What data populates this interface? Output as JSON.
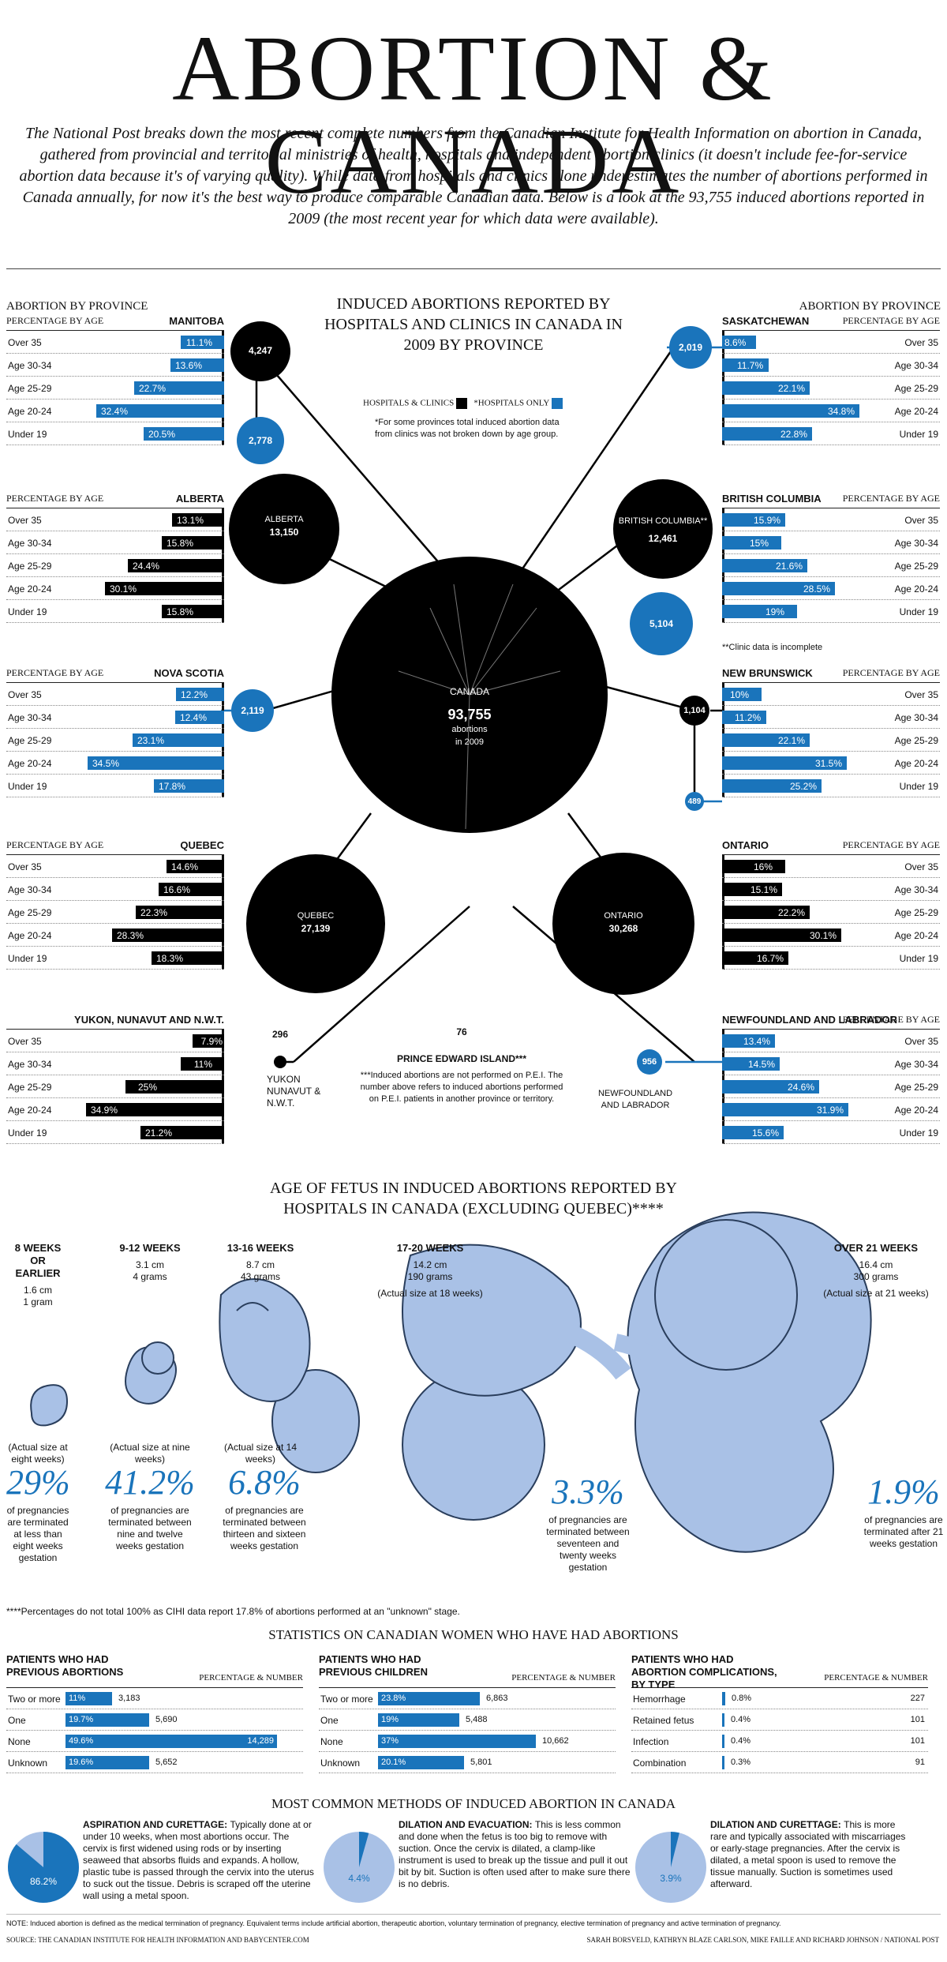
{
  "title": "ABORTION & CANADA",
  "intro": "The National Post breaks down the most recent complete numbers from the Canadian Institute for Health Information on abortion in Canada, gathered from provincial and territorial ministries of health, hospitals and independent abortion clinics (it doesn't include fee-for-service abortion data because it's of varying quality). While data from hospitals and clinics alone underestimates the number of abortions performed in Canada annually, for now it's the best way to produce comparable Canadian data. Below is a look at the 93,755 induced abortions reported in 2009 (the most recent year for which data were available).",
  "colors": {
    "black": "#000000",
    "blue": "#1a74bb",
    "light_blue": "#a9c1e6"
  },
  "center": {
    "title": "INDUCED ABORTIONS REPORTED BY HOSPITALS AND CLINICS IN CANADA IN 2009 BY PROVINCE",
    "legend_black": "HOSPITALS & CLINICS",
    "legend_blue": "*HOSPITALS ONLY",
    "note": "*For some provinces total induced abortion data from clinics was not broken down by age group.",
    "canada_name": "CANADA",
    "canada_total": "93,755",
    "canada_unit": "abortions",
    "canada_year": "in 2009",
    "abp_left": "ABORTION BY PROVINCE",
    "abp_right": "ABORTION BY PROVINCE"
  },
  "labels": {
    "pba": "PERCENTAGE BY AGE"
  },
  "age_groups": [
    "Over 35",
    "Age 30-34",
    "Age 25-29",
    "Age 20-24",
    "Under 19"
  ],
  "provinces": [
    {
      "name": "MANITOBA",
      "color": "blue",
      "values": [
        11.1,
        13.6,
        22.7,
        32.4,
        20.5
      ],
      "pct": [
        "11.1%",
        "13.6%",
        "22.7%",
        "32.4%",
        "20.5%"
      ]
    },
    {
      "name": "ALBERTA",
      "color": "black",
      "values": [
        13.1,
        15.8,
        24.4,
        30.1,
        15.8
      ],
      "pct": [
        "13.1%",
        "15.8%",
        "24.4%",
        "30.1%",
        "15.8%"
      ]
    },
    {
      "name": "NOVA SCOTIA",
      "color": "blue",
      "values": [
        12.2,
        12.4,
        23.1,
        34.5,
        17.8
      ],
      "pct": [
        "12.2%",
        "12.4%",
        "23.1%",
        "34.5%",
        "17.8%"
      ]
    },
    {
      "name": "QUEBEC",
      "color": "black",
      "values": [
        14.6,
        16.6,
        22.3,
        28.3,
        18.3
      ],
      "pct": [
        "14.6%",
        "16.6%",
        "22.3%",
        "28.3%",
        "18.3%"
      ]
    },
    {
      "name": "YUKON, NUNAVUT AND N.W.T.",
      "color": "black",
      "values": [
        7.9,
        11,
        25,
        34.9,
        21.2
      ],
      "pct": [
        "7.9%",
        "11%",
        "25%",
        "34.9%",
        "21.2%"
      ]
    },
    {
      "name": "SASKATCHEWAN",
      "color": "blue",
      "values": [
        8.6,
        11.7,
        22.1,
        34.8,
        22.8
      ],
      "pct": [
        "8.6%",
        "11.7%",
        "22.1%",
        "34.8%",
        "22.8%"
      ]
    },
    {
      "name": "BRITISH COLUMBIA",
      "color": "blue",
      "values": [
        15.9,
        15,
        21.6,
        28.5,
        19
      ],
      "pct": [
        "15.9%",
        "15%",
        "21.6%",
        "28.5%",
        "19%"
      ]
    },
    {
      "name": "NEW BRUNSWICK",
      "color": "blue",
      "values": [
        10,
        11.2,
        22.1,
        31.5,
        25.2
      ],
      "pct": [
        "10%",
        "11.2%",
        "22.1%",
        "31.5%",
        "25.2%"
      ]
    },
    {
      "name": "ONTARIO",
      "color": "black",
      "values": [
        16,
        15.1,
        22.2,
        30.1,
        16.7
      ],
      "pct": [
        "16%",
        "15.1%",
        "22.2%",
        "30.1%",
        "16.7%"
      ]
    },
    {
      "name": "NEWFOUNDLAND AND LABRADOR",
      "color": "blue",
      "values": [
        13.4,
        14.5,
        24.6,
        31.9,
        15.6
      ],
      "pct": [
        "13.4%",
        "14.5%",
        "24.6%",
        "31.9%",
        "15.6%"
      ]
    }
  ],
  "circles": {
    "manitoba_total": "4,247",
    "manitoba_hosp": "2,778",
    "alberta_name": "ALBERTA",
    "alberta_total": "13,150",
    "ns_hosp": "2,119",
    "quebec_name": "QUEBEC",
    "quebec_total": "27,139",
    "yukon_total": "296",
    "yukon_name": "YUKON NUNAVUT & N.W.T.",
    "sask_hosp": "2,019",
    "bc_name": "BRITISH COLUMBIA**",
    "bc_total": "12,461",
    "bc_hosp": "5,104",
    "nb_total": "1,104",
    "nb_hosp": "489",
    "ontario_name": "ONTARIO",
    "ontario_total": "30,268",
    "nfl_hosp": "956",
    "nfl_name": "NEWFOUNDLAND AND LABRADOR",
    "pei_total": "76",
    "pei_name": "PRINCE EDWARD ISLAND***",
    "pei_note": "***Induced abortions are not performed on P.E.I. The number above refers to induced abortions performed on P.E.I. patients in another province or territory.",
    "bc_note": "**Clinic data is incomplete"
  },
  "fetus": {
    "title": "AGE OF FETUS IN INDUCED ABORTIONS REPORTED BY HOSPITALS IN CANADA (EXCLUDING QUEBEC)****",
    "stages": [
      {
        "weeks": "8 WEEKS OR EARLIER",
        "size": "1.6 cm",
        "weight": "1 gram",
        "actual": "(Actual size at eight weeks)",
        "pct": "29%",
        "desc": "of pregnancies are terminated at less than eight weeks gestation",
        "value": 29
      },
      {
        "weeks": "9-12 WEEKS",
        "size": "3.1 cm",
        "weight": "4 grams",
        "actual": "(Actual size at nine weeks)",
        "pct": "41.2%",
        "desc": "of pregnancies are terminated between nine and twelve weeks gestation",
        "value": 41.2
      },
      {
        "weeks": "13-16 WEEKS",
        "size": "8.7 cm",
        "weight": "43 grams",
        "actual": "(Actual size at 14 weeks)",
        "pct": "6.8%",
        "desc": "of pregnancies are terminated between thirteen and sixteen weeks gestation",
        "value": 6.8
      },
      {
        "weeks": "17-20 WEEKS",
        "size": "14.2 cm",
        "weight": "190 grams",
        "actual": "(Actual size at 18 weeks)",
        "pct": "3.3%",
        "desc": "of pregnancies are terminated between seventeen and twenty weeks gestation",
        "value": 3.3
      },
      {
        "weeks": "OVER 21 WEEKS",
        "size": "16.4 cm",
        "weight": "300 grams",
        "actual": "(Actual size at 21 weeks)",
        "pct": "1.9%",
        "desc": "of pregnancies are terminated after 21 weeks gestation",
        "value": 1.9
      }
    ],
    "footnote": "****Percentages do not total 100% as CIHI data report 17.8% of abortions performed at an \"unknown\" stage."
  },
  "stats": {
    "title": "STATISTICS ON CANADIAN WOMEN WHO HAVE HAD ABORTIONS",
    "pn": "PERCENTAGE & NUMBER",
    "tables": [
      {
        "title": "PATIENTS WHO HAD PREVIOUS ABORTIONS",
        "rows": [
          {
            "label": "Two or more",
            "pct": "11%",
            "value": 11,
            "num": "3,183"
          },
          {
            "label": "One",
            "pct": "19.7%",
            "value": 19.7,
            "num": "5,690"
          },
          {
            "label": "None",
            "pct": "49.6%",
            "value": 49.6,
            "num": "14,289"
          },
          {
            "label": "Unknown",
            "pct": "19.6%",
            "value": 19.6,
            "num": "5,652"
          }
        ]
      },
      {
        "title": "PATIENTS WHO HAD PREVIOUS CHILDREN",
        "rows": [
          {
            "label": "Two or more",
            "pct": "23.8%",
            "value": 23.8,
            "num": "6,863"
          },
          {
            "label": "One",
            "pct": "19%",
            "value": 19,
            "num": "5,488"
          },
          {
            "label": "None",
            "pct": "37%",
            "value": 37,
            "num": "10,662"
          },
          {
            "label": "Unknown",
            "pct": "20.1%",
            "value": 20.1,
            "num": "5,801"
          }
        ]
      },
      {
        "title": "PATIENTS WHO HAD ABORTION COMPLICATIONS, BY TYPE",
        "rows": [
          {
            "label": "Hemorrhage",
            "pct": "0.8%",
            "value": 0.8,
            "num": "227"
          },
          {
            "label": "Retained fetus",
            "pct": "0.4%",
            "value": 0.4,
            "num": "101"
          },
          {
            "label": "Infection",
            "pct": "0.4%",
            "value": 0.4,
            "num": "101"
          },
          {
            "label": "Combination",
            "pct": "0.3%",
            "value": 0.3,
            "num": "91"
          }
        ]
      }
    ]
  },
  "methods": {
    "title": "MOST COMMON METHODS OF INDUCED ABORTION IN CANADA",
    "items": [
      {
        "name": "ASPIRATION AND CURETTAGE:",
        "text": "Typically done at or under 10 weeks, when most abortions occur. The cervix is first widened using rods or by inserting seaweed that absorbs fluids and expands. A hollow, plastic tube is passed through the cervix into the uterus to suck out the tissue. Debris is scraped off the uterine wall using a metal spoon.",
        "pct": "86.2%",
        "value": 86.2
      },
      {
        "name": "DILATION AND EVACUATION:",
        "text": "This is less common and done when the fetus is too big to remove with suction. Once the cervix is dilated, a clamp-like instrument is used to break up the tissue and pull it out bit by bit. Suction is often used after to make sure there is no debris.",
        "pct": "4.4%",
        "value": 4.4
      },
      {
        "name": "DILATION AND CURETTAGE:",
        "text": "This is more rare and typically associated with miscarriages or early-stage pregnancies. After the cervix is dilated, a metal spoon is used to remove the tissue manually. Suction is sometimes used afterward.",
        "pct": "3.9%",
        "value": 3.9
      }
    ]
  },
  "footer": {
    "note": "NOTE: Induced abortion is defined as the medical termination of pregnancy. Equivalent terms include artificial abortion, therapeutic abortion, voluntary termination of pregnancy, elective termination of pregnancy and active termination of pregnancy.",
    "source": "SOURCE: THE CANADIAN INSTITUTE FOR HEALTH INFORMATION AND BABYCENTER.COM",
    "credit": "SARAH BORSVELD, KATHRYN BLAZE CARLSON, MIKE FAILLE AND RICHARD JOHNSON / NATIONAL POST"
  },
  "chart_data": [
    {
      "type": "bar",
      "title": "INDUCED ABORTIONS REPORTED BY HOSPITALS AND CLINICS IN CANADA IN 2009 BY PROVINCE",
      "categories": [
        "Over 35",
        "Age 30-34",
        "Age 25-29",
        "Age 20-24",
        "Under 19"
      ],
      "series": [
        {
          "name": "MANITOBA",
          "values": [
            11.1,
            13.6,
            22.7,
            32.4,
            20.5
          ]
        },
        {
          "name": "ALBERTA",
          "values": [
            13.1,
            15.8,
            24.4,
            30.1,
            15.8
          ]
        },
        {
          "name": "NOVA SCOTIA",
          "values": [
            12.2,
            12.4,
            23.1,
            34.5,
            17.8
          ]
        },
        {
          "name": "QUEBEC",
          "values": [
            14.6,
            16.6,
            22.3,
            28.3,
            18.3
          ]
        },
        {
          "name": "YUKON, NUNAVUT AND N.W.T.",
          "values": [
            7.9,
            11,
            25,
            34.9,
            21.2
          ]
        },
        {
          "name": "SASKATCHEWAN",
          "values": [
            8.6,
            11.7,
            22.1,
            34.8,
            22.8
          ]
        },
        {
          "name": "BRITISH COLUMBIA",
          "values": [
            15.9,
            15,
            21.6,
            28.5,
            19
          ]
        },
        {
          "name": "NEW BRUNSWICK",
          "values": [
            10,
            11.2,
            22.1,
            31.5,
            25.2
          ]
        },
        {
          "name": "ONTARIO",
          "values": [
            16,
            15.1,
            22.2,
            30.1,
            16.7
          ]
        },
        {
          "name": "NEWFOUNDLAND AND LABRADOR",
          "values": [
            13.4,
            14.5,
            24.6,
            31.9,
            15.6
          ]
        }
      ],
      "totals": {
        "CANADA": 93755,
        "MANITOBA": 4247,
        "MANITOBA hospitals": 2778,
        "ALBERTA": 13150,
        "NOVA SCOTIA hospitals": 2119,
        "QUEBEC": 27139,
        "YUKON NUNAVUT & N.W.T.": 296,
        "SASKATCHEWAN hospitals": 2019,
        "BRITISH COLUMBIA": 12461,
        "BRITISH COLUMBIA hospitals": 5104,
        "NEW BRUNSWICK": 1104,
        "NEW BRUNSWICK hospitals": 489,
        "ONTARIO": 30268,
        "NEWFOUNDLAND AND LABRADOR hospitals": 956,
        "PRINCE EDWARD ISLAND": 76
      }
    },
    {
      "type": "bar",
      "title": "AGE OF FETUS IN INDUCED ABORTIONS REPORTED BY HOSPITALS IN CANADA (EXCLUDING QUEBEC)****",
      "categories": [
        "8 WEEKS OR EARLIER",
        "9-12 WEEKS",
        "13-16 WEEKS",
        "17-20 WEEKS",
        "OVER 21 WEEKS"
      ],
      "values": [
        29,
        41.2,
        6.8,
        3.3,
        1.9
      ]
    },
    {
      "type": "bar",
      "title": "STATISTICS ON CANADIAN WOMEN WHO HAVE HAD ABORTIONS",
      "categories": [
        "Two or more",
        "One",
        "None",
        "Unknown"
      ],
      "series": [
        {
          "name": "PATIENTS WHO HAD PREVIOUS ABORTIONS",
          "values": [
            11,
            19.7,
            49.6,
            19.6
          ]
        },
        {
          "name": "PATIENTS WHO HAD PREVIOUS CHILDREN",
          "values": [
            23.8,
            19,
            37,
            20.1
          ]
        }
      ]
    },
    {
      "type": "bar",
      "title": "PATIENTS WHO HAD ABORTION COMPLICATIONS, BY TYPE",
      "categories": [
        "Hemorrhage",
        "Retained fetus",
        "Infection",
        "Combination"
      ],
      "values": [
        0.8,
        0.4,
        0.4,
        0.3
      ]
    },
    {
      "type": "pie",
      "title": "MOST COMMON METHODS OF INDUCED ABORTION IN CANADA",
      "categories": [
        "ASPIRATION AND CURETTAGE",
        "DILATION AND EVACUATION",
        "DILATION AND CURETTAGE"
      ],
      "values": [
        86.2,
        4.4,
        3.9
      ]
    }
  ]
}
